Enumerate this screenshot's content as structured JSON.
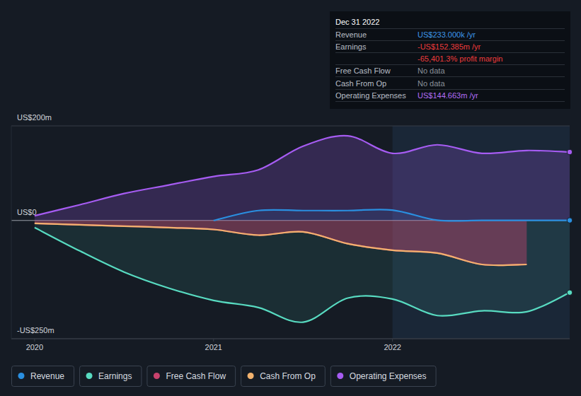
{
  "chart_data": {
    "type": "line",
    "x": [
      2020,
      2020.25,
      2020.5,
      2020.75,
      2021,
      2021.25,
      2021.5,
      2021.75,
      2022,
      2022.25,
      2022.5,
      2022.75,
      2022.99
    ],
    "xlim": [
      2019.87,
      2022.99
    ],
    "xticks": [
      2020,
      2021,
      2022
    ],
    "ylim": [
      -250,
      200
    ],
    "yticks": [
      {
        "value": 200,
        "label": "US$200m"
      },
      {
        "value": 0,
        "label": "US$0"
      },
      {
        "value": -250,
        "label": "-US$250m"
      }
    ],
    "grid": true,
    "legend": "bottom",
    "series": [
      {
        "name": "Revenue",
        "color": "#2a8fe0",
        "values": [
          null,
          null,
          null,
          null,
          0,
          21,
          21,
          21,
          22,
          0.5,
          0.3,
          0.3,
          0.233
        ]
      },
      {
        "name": "Earnings",
        "color": "#58dbc1",
        "values": [
          -15,
          -64,
          -109,
          -143,
          -169,
          -184,
          -215,
          -164,
          -166,
          -201,
          -191,
          -193,
          -152.385
        ]
      },
      {
        "name": "Free Cash Flow",
        "color": "#c8426d",
        "values": [
          -6,
          -9,
          -12,
          -15,
          -19,
          -31,
          -24,
          -49,
          -63,
          -69,
          -93,
          -93,
          null
        ]
      },
      {
        "name": "Cash From Op",
        "color": "#f2b26e",
        "values": [
          -6,
          -9,
          -12,
          -15,
          -19,
          -31,
          -24,
          -49,
          -63,
          -69,
          -93,
          -93,
          null
        ]
      },
      {
        "name": "Operating Expenses",
        "color": "#a65cf2",
        "values": [
          10,
          33,
          57,
          75,
          93,
          107,
          157,
          179,
          142,
          160,
          142,
          148,
          144.663
        ]
      }
    ],
    "annotations": {
      "title": "Dec 31 2022",
      "rows": [
        {
          "label": "Revenue",
          "value": "US$233.000k /yr",
          "color": "#3d97ea"
        },
        {
          "label": "Earnings",
          "value": "-US$152.385m /yr",
          "color": "#ee3b3b"
        },
        {
          "value": "-65,401.3% profit margin",
          "color": "#ee3b3b"
        },
        {
          "label": "Free Cash Flow",
          "value": "No data",
          "color": "#8a9099"
        },
        {
          "label": "Cash From Op",
          "value": "No data",
          "color": "#8a9099"
        },
        {
          "label": "Operating Expenses",
          "value": "US$144.663m /yr",
          "color": "#b46ef7"
        }
      ]
    }
  }
}
